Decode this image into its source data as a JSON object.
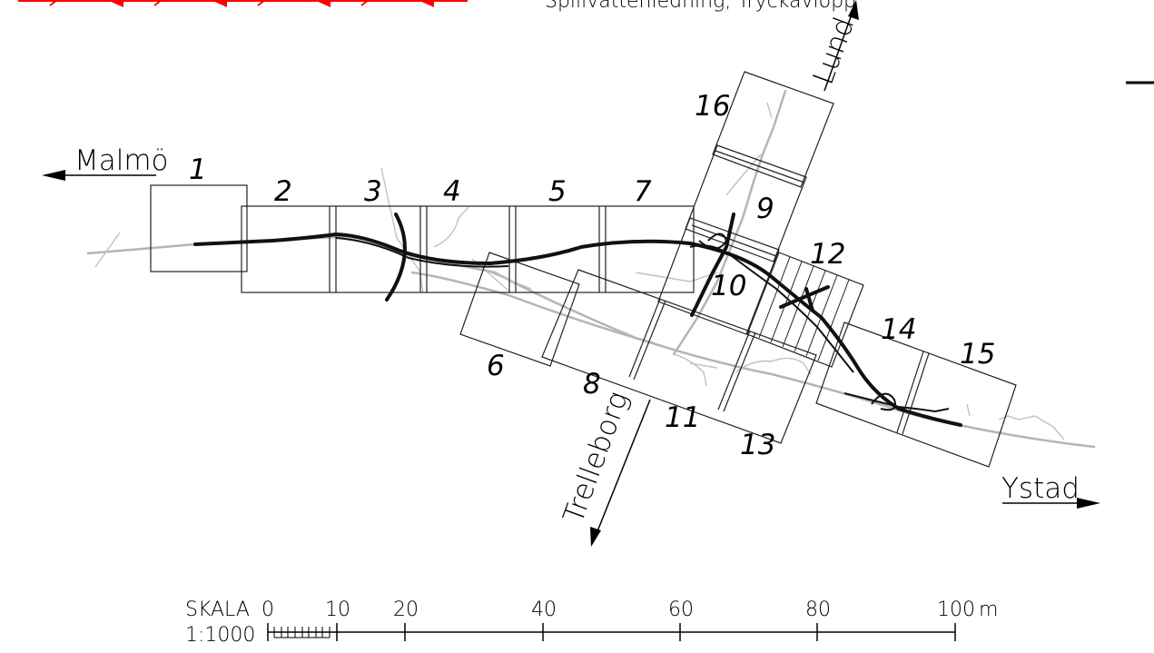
{
  "top_label": "Spillvattenledning, Tryckavlopp",
  "destinations": {
    "malmo": "Malmö",
    "lund": "Lund",
    "trelleborg": "Trelleborg",
    "ystad": "Ystad"
  },
  "sheets": [
    "1",
    "2",
    "3",
    "4",
    "5",
    "6",
    "7",
    "8",
    "9",
    "10",
    "11",
    "12",
    "13",
    "14",
    "15",
    "16"
  ],
  "scale": {
    "label": "SKALA",
    "ratio": "1:1000",
    "ticks": [
      "0",
      "10",
      "20",
      "40",
      "60",
      "80",
      "100"
    ],
    "unit": "m"
  },
  "colors": {
    "road": "#111111",
    "existing_road": "#b5b5b5",
    "legend_line": "#ff0000",
    "sheet_frame": "#222222"
  }
}
